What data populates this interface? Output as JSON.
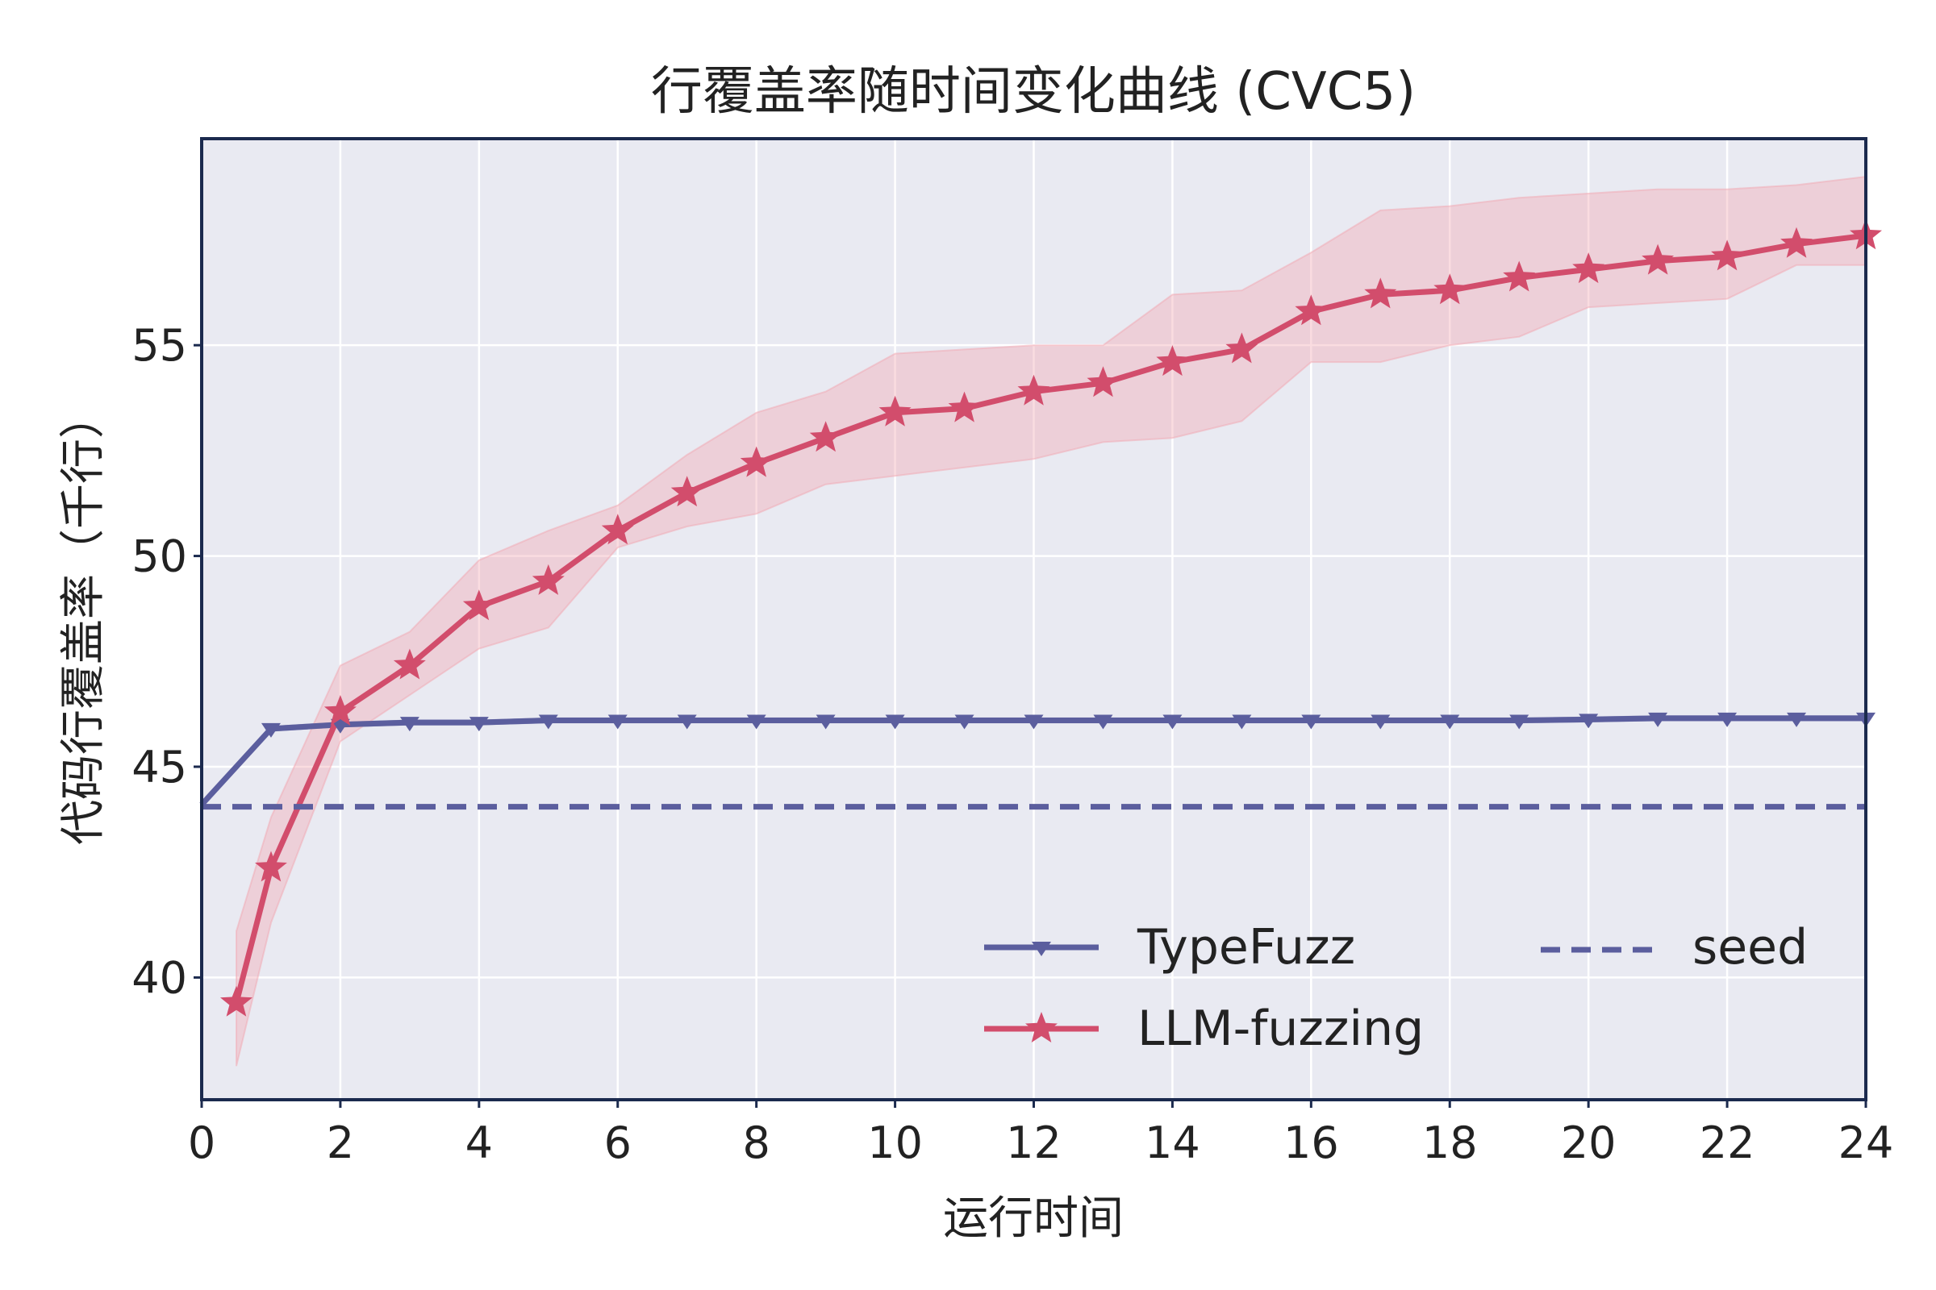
{
  "chart_data": {
    "type": "line",
    "title": "行覆盖率随时间变化曲线 (CVC5)",
    "xlabel": "运行时间",
    "ylabel": "代码行覆盖率（千行）",
    "xlim": [
      0,
      24
    ],
    "ylim": [
      37.1,
      59.9
    ],
    "xticks": [
      0,
      2,
      4,
      6,
      8,
      10,
      12,
      14,
      16,
      18,
      20,
      22,
      24
    ],
    "yticks": [
      40,
      45,
      50,
      55
    ],
    "grid": true,
    "legend_position": "lower-right",
    "background": "#e9eaf2",
    "series": [
      {
        "name": "TypeFuzz",
        "color": "#5b5e9e",
        "marker": "triangle-down",
        "x": [
          0,
          1,
          2,
          3,
          4,
          5,
          6,
          7,
          8,
          9,
          10,
          11,
          12,
          13,
          14,
          15,
          16,
          17,
          18,
          19,
          20,
          21,
          22,
          23,
          24
        ],
        "y": [
          44.1,
          45.9,
          46.0,
          46.05,
          46.05,
          46.1,
          46.1,
          46.1,
          46.1,
          46.1,
          46.1,
          46.1,
          46.1,
          46.1,
          46.1,
          46.1,
          46.1,
          46.1,
          46.1,
          46.1,
          46.12,
          46.15,
          46.15,
          46.15,
          46.15
        ],
        "y_lower": [
          44.1,
          45.85,
          45.95,
          46.0,
          46.0,
          46.05,
          46.05,
          46.05,
          46.05,
          46.05,
          46.05,
          46.05,
          46.05,
          46.05,
          46.05,
          46.05,
          46.05,
          46.05,
          46.05,
          46.05,
          46.07,
          46.1,
          46.1,
          46.1,
          46.1
        ],
        "y_upper": [
          44.1,
          45.95,
          46.05,
          46.1,
          46.1,
          46.15,
          46.15,
          46.15,
          46.15,
          46.15,
          46.15,
          46.15,
          46.15,
          46.15,
          46.15,
          46.15,
          46.15,
          46.15,
          46.15,
          46.15,
          46.17,
          46.2,
          46.2,
          46.2,
          46.2
        ]
      },
      {
        "name": "LLM-fuzzing",
        "color": "#d24d6c",
        "band_color": "#f2a8b2",
        "marker": "star",
        "x": [
          0.5,
          1,
          2,
          3,
          4,
          5,
          6,
          7,
          8,
          9,
          10,
          11,
          12,
          13,
          14,
          15,
          16,
          17,
          18,
          19,
          20,
          21,
          22,
          23,
          24
        ],
        "y": [
          39.4,
          42.6,
          46.3,
          47.4,
          48.8,
          49.4,
          50.6,
          51.5,
          52.2,
          52.8,
          53.4,
          53.5,
          53.9,
          54.1,
          54.6,
          54.9,
          55.8,
          56.2,
          56.3,
          56.6,
          56.8,
          57.0,
          57.1,
          57.4,
          57.6
        ],
        "y_lower": [
          37.9,
          41.3,
          45.6,
          46.7,
          47.8,
          48.3,
          50.2,
          50.7,
          51.0,
          51.7,
          51.9,
          52.1,
          52.3,
          52.7,
          52.8,
          53.2,
          54.6,
          54.6,
          55.0,
          55.2,
          55.9,
          56.0,
          56.1,
          56.9,
          56.9
        ],
        "y_upper": [
          41.1,
          43.8,
          47.4,
          48.2,
          49.9,
          50.6,
          51.2,
          52.4,
          53.4,
          53.9,
          54.8,
          54.9,
          55.0,
          55.0,
          56.2,
          56.3,
          57.2,
          58.2,
          58.3,
          58.5,
          58.6,
          58.7,
          58.7,
          58.8,
          59.0
        ]
      },
      {
        "name": "seed",
        "color": "#5b5e9e",
        "dashed": true,
        "x": [
          0,
          24
        ],
        "y": [
          44.05,
          44.05
        ]
      }
    ]
  }
}
